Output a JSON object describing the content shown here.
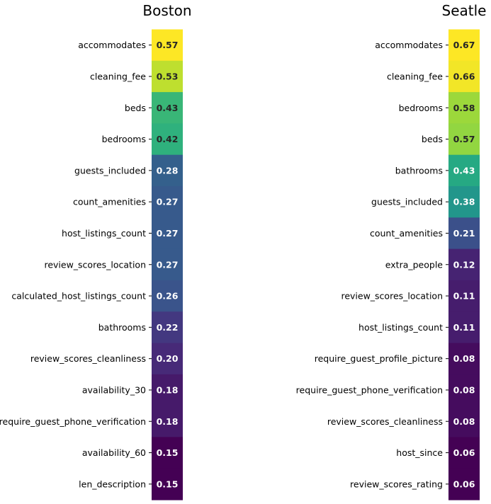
{
  "chart_data": [
    {
      "type": "heatmap",
      "title": "Boston",
      "xlabel": "",
      "ylabel": "",
      "colormap": "viridis",
      "color_range": [
        0.15,
        0.57
      ],
      "rows": [
        {
          "label": "accommodates",
          "value": "0.57"
        },
        {
          "label": "cleaning_fee",
          "value": "0.53"
        },
        {
          "label": "beds",
          "value": "0.43"
        },
        {
          "label": "bedrooms",
          "value": "0.42"
        },
        {
          "label": "guests_included",
          "value": "0.28"
        },
        {
          "label": "count_amenities",
          "value": "0.27"
        },
        {
          "label": "host_listings_count",
          "value": "0.27"
        },
        {
          "label": "review_scores_location",
          "value": "0.27"
        },
        {
          "label": "calculated_host_listings_count",
          "value": "0.26"
        },
        {
          "label": "bathrooms",
          "value": "0.22"
        },
        {
          "label": "review_scores_cleanliness",
          "value": "0.20"
        },
        {
          "label": "availability_30",
          "value": "0.18"
        },
        {
          "label": "require_guest_phone_verification",
          "value": "0.18"
        },
        {
          "label": "availability_60",
          "value": "0.15"
        },
        {
          "label": "len_description",
          "value": "0.15"
        }
      ]
    },
    {
      "type": "heatmap",
      "title": "Seatle",
      "xlabel": "",
      "ylabel": "",
      "colormap": "viridis",
      "color_range": [
        0.06,
        0.67
      ],
      "rows": [
        {
          "label": "accommodates",
          "value": "0.67"
        },
        {
          "label": "cleaning_fee",
          "value": "0.66"
        },
        {
          "label": "bedrooms",
          "value": "0.58"
        },
        {
          "label": "beds",
          "value": "0.57"
        },
        {
          "label": "bathrooms",
          "value": "0.43"
        },
        {
          "label": "guests_included",
          "value": "0.38"
        },
        {
          "label": "count_amenities",
          "value": "0.21"
        },
        {
          "label": "extra_people",
          "value": "0.12"
        },
        {
          "label": "review_scores_location",
          "value": "0.11"
        },
        {
          "label": "host_listings_count",
          "value": "0.11"
        },
        {
          "label": "require_guest_profile_picture",
          "value": "0.08"
        },
        {
          "label": "require_guest_phone_verification",
          "value": "0.08"
        },
        {
          "label": "review_scores_cleanliness",
          "value": "0.08"
        },
        {
          "label": "host_since",
          "value": "0.06"
        },
        {
          "label": "review_scores_rating",
          "value": "0.06"
        }
      ]
    }
  ]
}
